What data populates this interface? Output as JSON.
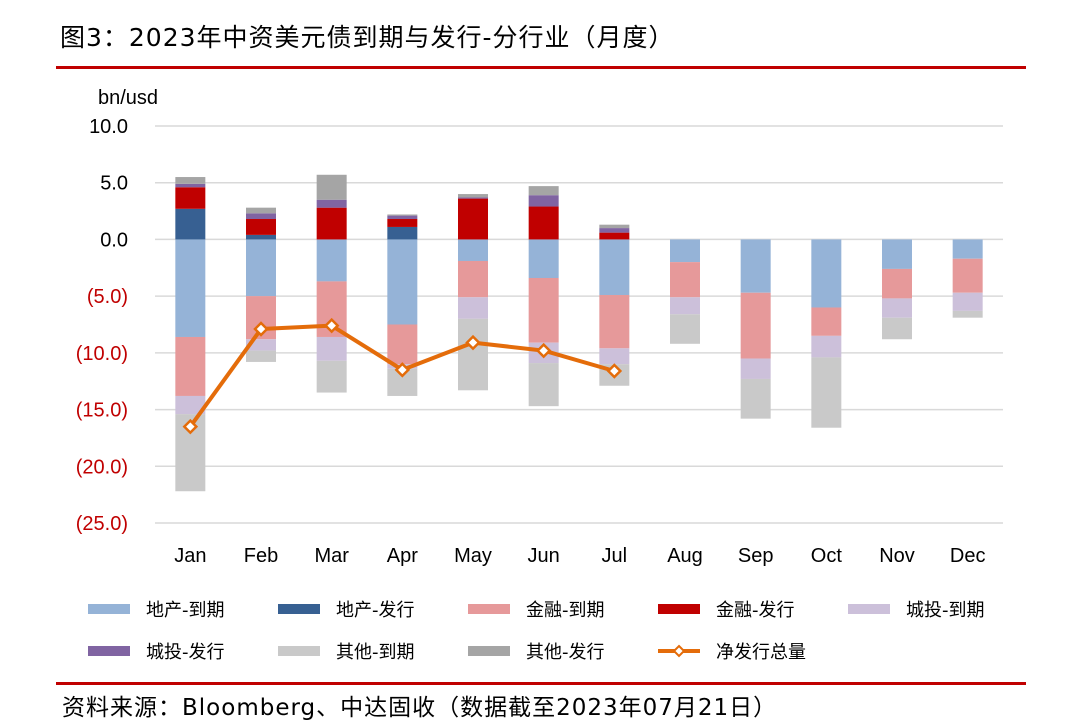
{
  "title": "图3：2023年中资美元债到期与发行-分行业（月度）",
  "source": "资料来源：Bloomberg、中达固收（数据截至2023年07月21日）",
  "colors": {
    "rule": "#c00000",
    "grid": "#d9d9d9",
    "tick_positive": "#000000",
    "tick_negative": "#c00000"
  },
  "chart_data": {
    "type": "bar",
    "stacked": true,
    "unit_label": "bn/usd",
    "categories": [
      "Jan",
      "Feb",
      "Mar",
      "Apr",
      "May",
      "Jun",
      "Jul",
      "Aug",
      "Sep",
      "Oct",
      "Nov",
      "Dec"
    ],
    "ylim": [
      -25,
      10
    ],
    "yticks": [
      10,
      5,
      0,
      -5,
      -10,
      -15,
      -20,
      -25
    ],
    "ytick_labels": [
      "10.0",
      "5.0",
      "0.0",
      "(5.0)",
      "(10.0)",
      "(15.0)",
      "(20.0)",
      "(25.0)"
    ],
    "grid": true,
    "legend_position": "bottom",
    "series": [
      {
        "name": "地产-到期",
        "color": "#95b3d7",
        "kind": "bar",
        "values": [
          -8.6,
          -5.0,
          -3.7,
          -7.5,
          -1.9,
          -3.4,
          -4.9,
          -2.0,
          -4.7,
          -6.0,
          -2.6,
          -1.7
        ]
      },
      {
        "name": "地产-发行",
        "color": "#376092",
        "kind": "bar",
        "values": [
          2.7,
          0.4,
          0,
          1.1,
          0,
          0,
          0,
          0,
          0,
          0,
          0,
          0
        ]
      },
      {
        "name": "金融-到期",
        "color": "#e6999a",
        "kind": "bar",
        "values": [
          -5.2,
          -3.8,
          -4.9,
          -3.5,
          -3.2,
          -5.7,
          -4.7,
          -3.1,
          -5.8,
          -2.5,
          -2.6,
          -3.0
        ]
      },
      {
        "name": "金融-发行",
        "color": "#c00000",
        "kind": "bar",
        "values": [
          1.9,
          1.4,
          2.8,
          0.7,
          3.6,
          2.9,
          0.6,
          0,
          0,
          0,
          0,
          0
        ]
      },
      {
        "name": "城投-到期",
        "color": "#ccc0da",
        "kind": "bar",
        "values": [
          -1.6,
          -1.0,
          -2.1,
          -0.4,
          -1.9,
          -1.8,
          -1.4,
          -1.5,
          -1.8,
          -1.9,
          -1.7,
          -1.6
        ]
      },
      {
        "name": "城投-发行",
        "color": "#8064a2",
        "kind": "bar",
        "values": [
          0.3,
          0.5,
          0.7,
          0.3,
          0.1,
          1.0,
          0.4,
          0,
          0,
          0,
          0,
          0
        ]
      },
      {
        "name": "其他-到期",
        "color": "#c9c9c9",
        "kind": "bar",
        "values": [
          -6.8,
          -1.0,
          -2.8,
          -2.4,
          -6.3,
          -3.8,
          -1.9,
          -2.6,
          -3.5,
          -6.2,
          -1.9,
          -0.6
        ]
      },
      {
        "name": "其他-发行",
        "color": "#a5a5a5",
        "kind": "bar",
        "values": [
          0.6,
          0.5,
          2.2,
          0.1,
          0.3,
          0.8,
          0.3,
          0,
          0,
          0,
          0,
          0
        ]
      },
      {
        "name": "净发行总量",
        "color": "#e46c0a",
        "kind": "line",
        "marker": "diamond",
        "values": [
          -16.5,
          -7.9,
          -7.6,
          -11.5,
          -9.1,
          -9.8,
          -11.6,
          null,
          null,
          null,
          null,
          null
        ]
      }
    ]
  }
}
